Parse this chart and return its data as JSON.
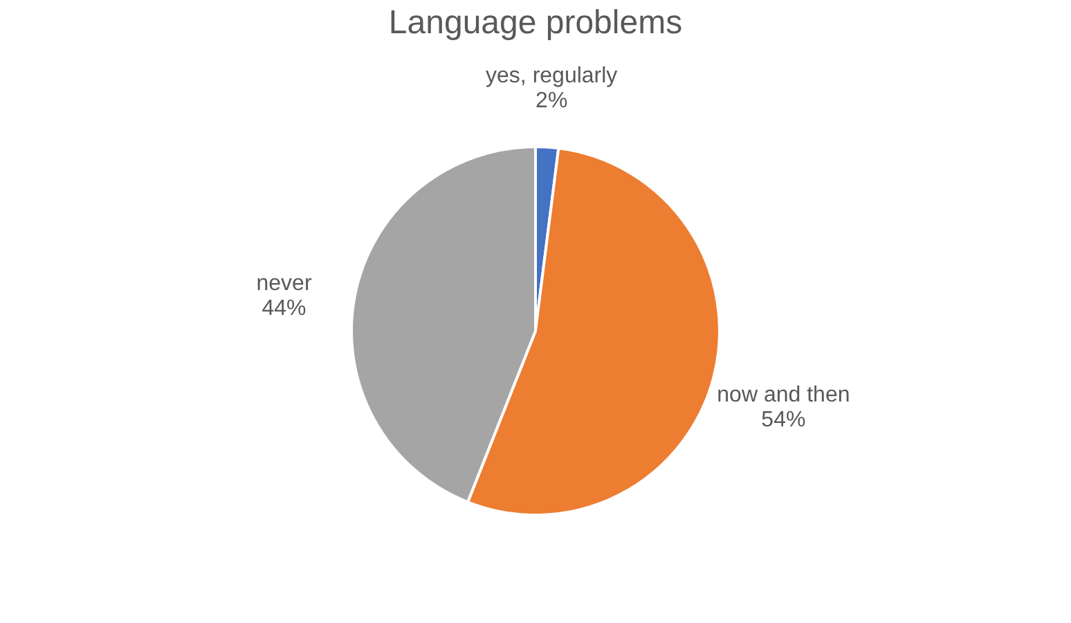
{
  "chart_data": {
    "type": "pie",
    "title": "Language problems",
    "categories": [
      "yes, regularly",
      "now and then",
      "never"
    ],
    "values": [
      2,
      54,
      44
    ],
    "colors": [
      "#4472c4",
      "#ed7d31",
      "#a5a5a5"
    ],
    "value_labels": [
      "2%",
      "54%",
      "44%"
    ],
    "legend": false
  }
}
